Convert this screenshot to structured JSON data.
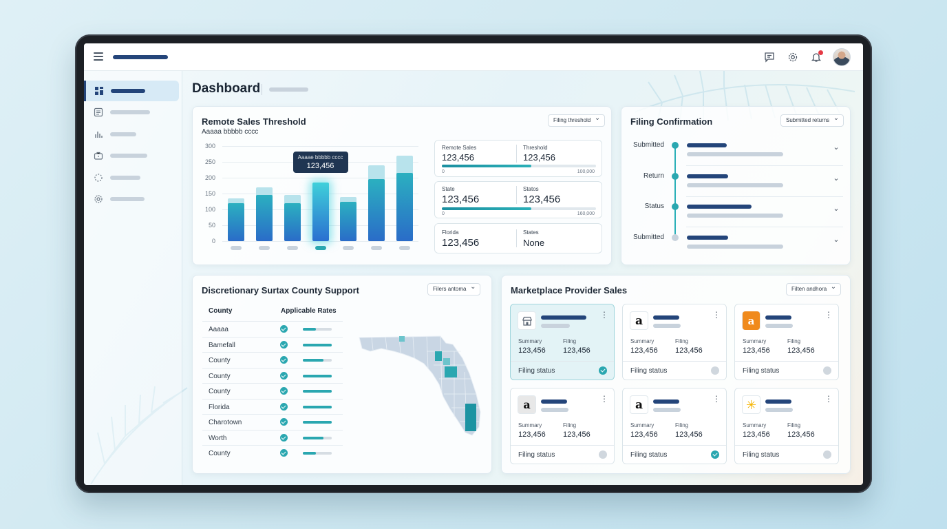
{
  "page": {
    "title": "Dashboard"
  },
  "colors": {
    "primary": "#24457a",
    "accent": "#2aa7b0",
    "alert": "#e53945"
  },
  "topbar": {
    "icons": [
      "menu-icon",
      "chat-icon",
      "gear-icon",
      "bell-icon",
      "avatar"
    ]
  },
  "sidebar": {
    "items": [
      {
        "icon": "dashboard-icon",
        "active": true
      },
      {
        "icon": "document-icon",
        "active": false
      },
      {
        "icon": "bar-chart-icon",
        "active": false
      },
      {
        "icon": "briefcase-icon",
        "active": false
      },
      {
        "icon": "loading-icon",
        "active": false
      },
      {
        "icon": "settings-icon",
        "active": false
      }
    ]
  },
  "remote_sales": {
    "title": "Remote Sales Threshold",
    "subtitle": "Aaaaa bbbbb cccc",
    "filter": "Filing threshold",
    "tooltip": {
      "label": "Aaaae bbbbb cccc",
      "value": "123,456"
    },
    "stats": [
      {
        "left_label": "Remote Sales",
        "left_value": "123,456",
        "right_label": "Threshold",
        "right_value": "123,456",
        "progress": 0.58,
        "min": "0",
        "max": "100,000"
      },
      {
        "left_label": "State",
        "left_value": "123,456",
        "right_label": "Statos",
        "right_value": "123,456",
        "progress": 0.58,
        "min": "0",
        "max": "160,000"
      },
      {
        "left_label": "Florida",
        "left_value": "123,456",
        "right_label": "States",
        "right_value": "None"
      }
    ]
  },
  "chart_data": {
    "type": "bar",
    "categories": [
      "",
      "",
      "",
      "",
      "",
      "",
      ""
    ],
    "series": [
      {
        "values": [
          120,
          145,
          120,
          185,
          125,
          195,
          215
        ]
      },
      {
        "values": [
          135,
          170,
          145,
          185,
          140,
          240,
          270
        ]
      }
    ],
    "highlighted_index": 3,
    "ylim": [
      0,
      300
    ],
    "yticks": [
      "300",
      "250",
      "200",
      "150",
      "100",
      "50",
      "0"
    ],
    "grid": true
  },
  "filing_confirmation": {
    "title": "Filing Confirmation",
    "filter": "Submitted returns",
    "steps": [
      {
        "label": "Submitted",
        "status": "done"
      },
      {
        "label": "Return",
        "status": "done"
      },
      {
        "label": "Status",
        "status": "done"
      },
      {
        "label": "Submitted",
        "status": "pending"
      }
    ]
  },
  "surtax": {
    "title": "Discretionary Surtax County Support",
    "filter": "Filers antoma",
    "columns": [
      "County",
      "Applicable Rates"
    ],
    "rows": [
      {
        "county": "Aaaaa",
        "rate": 0.45
      },
      {
        "county": "Bamefall",
        "rate": 1.0
      },
      {
        "county": "County",
        "rate": 0.72
      },
      {
        "county": "County",
        "rate": 1.0
      },
      {
        "county": "County",
        "rate": 1.0
      },
      {
        "county": "Florida",
        "rate": 1.0
      },
      {
        "county": "Charotown",
        "rate": 1.0
      },
      {
        "county": "Worth",
        "rate": 0.72
      },
      {
        "county": "County",
        "rate": 0.45
      }
    ]
  },
  "marketplace": {
    "title": "Marketplace Provider Sales",
    "filter": "Filten andhora",
    "tiles": [
      {
        "logo": "store-icon",
        "summary_label": "Summary",
        "summary_value": "123,456",
        "filing_label": "Filing",
        "filing_value": "123,456",
        "footer": "Filing status",
        "status": "ok",
        "selected": true
      },
      {
        "logo": "amazon-icon",
        "summary_label": "Summary",
        "summary_value": "123,456",
        "filing_label": "Filing",
        "filing_value": "123,456",
        "footer": "Filing status",
        "status": "pending",
        "selected": false
      },
      {
        "logo": "amazon-orange-icon",
        "summary_label": "Summary",
        "summary_value": "123,456",
        "filing_label": "Filing",
        "filing_value": "123,456",
        "footer": "Filing status",
        "status": "pending",
        "selected": false
      },
      {
        "logo": "amazon-gray-icon",
        "summary_label": "Summary",
        "summary_value": "123,456",
        "filing_label": "Filing",
        "filing_value": "123,456",
        "footer": "Filing status",
        "status": "pending",
        "selected": false
      },
      {
        "logo": "amazon-icon",
        "summary_label": "Summary",
        "summary_value": "123,456",
        "filing_label": "Filing",
        "filing_value": "123,456",
        "footer": "Filing status",
        "status": "ok",
        "selected": false
      },
      {
        "logo": "walmart-icon",
        "summary_label": "Summary",
        "summary_value": "123,456",
        "filing_label": "Filing",
        "filing_value": "123,456",
        "footer": "Filing status",
        "status": "pending",
        "selected": false
      }
    ]
  }
}
